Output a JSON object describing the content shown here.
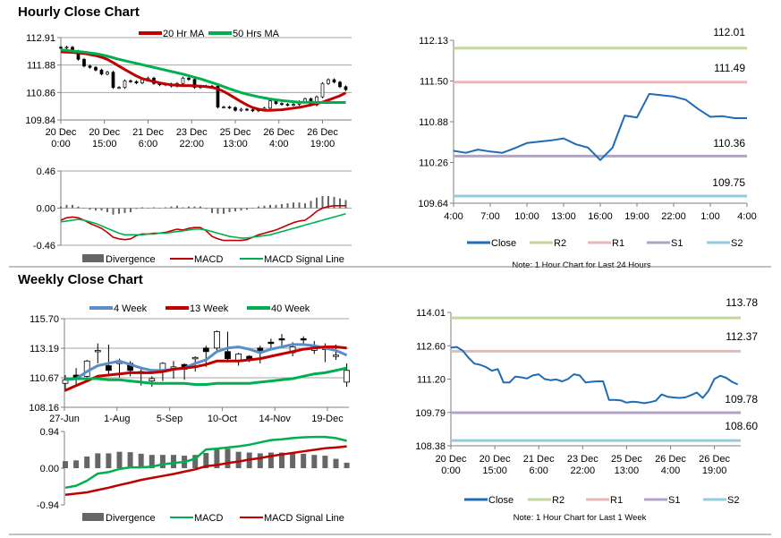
{
  "page": {
    "hourly_title": "Hourly Close Chart",
    "weekly_title": "Weekly Close Chart"
  },
  "colors": {
    "close": "#1f6cb4",
    "ma20": "#c00000",
    "ma50": "#00b050",
    "r2": "#c3d69b",
    "r1": "#e6b9b8",
    "s1": "#b3a2c7",
    "s2": "#93cddd",
    "week4": "#5b8ec9",
    "week13": "#c00000",
    "week40": "#00b050",
    "divergence": "#666666",
    "grid": "#a6a6a6",
    "axis": "#7f7f7f"
  },
  "chart_data": [
    {
      "id": "hourly_candles",
      "type": "candlestick",
      "x_start": "20 Dec 0:00",
      "interval_hours": 2,
      "xticks": [
        [
          "20 Dec",
          "0:00"
        ],
        [
          "20 Dec",
          "15:00"
        ],
        [
          "21 Dec",
          "6:00"
        ],
        [
          "23 Dec",
          "22:00"
        ],
        [
          "25 Dec",
          "13:00"
        ],
        [
          "26 Dec",
          "4:00"
        ],
        [
          "26 Dec",
          "19:00"
        ]
      ],
      "yticks": [
        "112.91",
        "111.88",
        "110.86",
        "109.84"
      ],
      "ylim": [
        109.84,
        112.91
      ],
      "grid": true,
      "legend_position": "top",
      "close": {
        "values": [
          112.52,
          112.55,
          112.4,
          112.1,
          111.85,
          111.8,
          111.7,
          111.55,
          111.62,
          111.05,
          111.05,
          111.3,
          111.27,
          111.22,
          111.35,
          111.4,
          111.2,
          111.15,
          111.18,
          111.1,
          111.2,
          111.4,
          111.35,
          111.05,
          111.08,
          111.1,
          111.1,
          110.32,
          110.32,
          110.3,
          110.2,
          110.24,
          110.22,
          110.18,
          110.22,
          110.28,
          110.55,
          110.45,
          110.42,
          110.4,
          110.42,
          110.52,
          110.63,
          110.4,
          110.7,
          111.2,
          111.34,
          111.25,
          111.08,
          110.97
        ]
      },
      "series": [
        {
          "name": "20 Hr MA",
          "color": "#c00000",
          "values": [
            112.38,
            112.37,
            112.36,
            112.34,
            112.32,
            112.28,
            112.24,
            112.18,
            112.1,
            111.98,
            111.85,
            111.72,
            111.6,
            111.48,
            111.38,
            111.32,
            111.27,
            111.22,
            111.18,
            111.15,
            111.13,
            111.12,
            111.12,
            111.11,
            111.1,
            111.08,
            111.05,
            111.0,
            110.9,
            110.78,
            110.65,
            110.52,
            110.4,
            110.3,
            110.24,
            110.2,
            110.2,
            110.21,
            110.22,
            110.25,
            110.28,
            110.31,
            110.35,
            110.4,
            110.45,
            110.5,
            110.58,
            110.66,
            110.74,
            110.85
          ]
        },
        {
          "name": "50 Hrs MA",
          "color": "#00b050",
          "values": [
            112.45,
            112.43,
            112.41,
            112.39,
            112.37,
            112.34,
            112.31,
            112.27,
            112.22,
            112.16,
            112.1,
            112.05,
            112.0,
            111.95,
            111.9,
            111.85,
            111.8,
            111.75,
            111.7,
            111.65,
            111.6,
            111.55,
            111.49,
            111.43,
            111.37,
            111.3,
            111.23,
            111.16,
            111.08,
            111.0,
            110.93,
            110.86,
            110.8,
            110.75,
            110.7,
            110.66,
            110.62,
            110.59,
            110.56,
            110.54,
            110.52,
            110.5,
            110.5,
            110.5,
            110.49,
            110.49,
            110.49,
            110.49,
            110.49,
            110.49
          ]
        }
      ]
    },
    {
      "id": "hourly_macd",
      "type": "bar+line",
      "x_start": "20 Dec 0:00",
      "interval_hours": 2,
      "yticks": [
        "0.46",
        "0.00",
        "-0.46"
      ],
      "ylim": [
        -0.46,
        0.46
      ],
      "grid": true,
      "legend_position": "bottom",
      "series": [
        {
          "name": "Divergence",
          "color": "#666666"
        },
        {
          "name": "MACD",
          "color": "#c00000",
          "values": [
            -0.15,
            -0.12,
            -0.11,
            -0.12,
            -0.15,
            -0.19,
            -0.22,
            -0.25,
            -0.3,
            -0.36,
            -0.38,
            -0.39,
            -0.38,
            -0.34,
            -0.32,
            -0.32,
            -0.31,
            -0.31,
            -0.3,
            -0.28,
            -0.26,
            -0.27,
            -0.25,
            -0.24,
            -0.24,
            -0.28,
            -0.35,
            -0.38,
            -0.4,
            -0.4,
            -0.4,
            -0.4,
            -0.39,
            -0.36,
            -0.33,
            -0.31,
            -0.29,
            -0.27,
            -0.24,
            -0.21,
            -0.18,
            -0.16,
            -0.15,
            -0.1,
            -0.04,
            0.0,
            0.02,
            0.03,
            0.03,
            0.03
          ]
        },
        {
          "name": "MACD Signal Line",
          "color": "#00b050",
          "values": [
            -0.17,
            -0.16,
            -0.15,
            -0.14,
            -0.15,
            -0.17,
            -0.19,
            -0.22,
            -0.25,
            -0.28,
            -0.31,
            -0.33,
            -0.33,
            -0.33,
            -0.33,
            -0.32,
            -0.32,
            -0.31,
            -0.31,
            -0.3,
            -0.29,
            -0.28,
            -0.27,
            -0.26,
            -0.26,
            -0.27,
            -0.29,
            -0.31,
            -0.33,
            -0.35,
            -0.36,
            -0.37,
            -0.37,
            -0.36,
            -0.35,
            -0.34,
            -0.33,
            -0.31,
            -0.29,
            -0.27,
            -0.25,
            -0.23,
            -0.21,
            -0.19,
            -0.17,
            -0.15,
            -0.13,
            -0.11,
            -0.09,
            -0.07
          ]
        }
      ]
    },
    {
      "id": "hourly_24h",
      "type": "line",
      "x_start": "4:00",
      "interval_hours": 1,
      "xticks": [
        "4:00",
        "7:00",
        "10:00",
        "13:00",
        "16:00",
        "19:00",
        "22:00",
        "1:00",
        "4:00"
      ],
      "yticks": [
        "112.13",
        "111.50",
        "110.88",
        "110.26",
        "109.64"
      ],
      "ylim": [
        109.64,
        112.13
      ],
      "grid": false,
      "legend_position": "bottom",
      "series": [
        {
          "name": "Close",
          "color": "#1f6cb4",
          "values": [
            110.44,
            110.41,
            110.46,
            110.43,
            110.41,
            110.48,
            110.56,
            110.58,
            110.6,
            110.63,
            110.54,
            110.49,
            110.3,
            110.49,
            110.98,
            110.95,
            111.31,
            111.29,
            111.27,
            111.22,
            111.08,
            110.96,
            110.97,
            110.94,
            110.94
          ]
        }
      ],
      "levels": [
        {
          "name": "R2",
          "value": 112.01,
          "label": "112.01",
          "color": "#c3d69b"
        },
        {
          "name": "R1",
          "value": 111.49,
          "label": "111.49",
          "color": "#e6b9b8"
        },
        {
          "name": "S1",
          "value": 110.36,
          "label": "110.36",
          "color": "#b3a2c7"
        },
        {
          "name": "S2",
          "value": 109.75,
          "label": "109.75",
          "color": "#93cddd"
        }
      ],
      "note": "Note: 1 Hour Chart for Last 24 Hours"
    },
    {
      "id": "weekly_candles",
      "type": "candlestick",
      "x_start": "27-Jun",
      "interval": "1 week",
      "xticks": [
        "27-Jun",
        "1-Aug",
        "5-Sep",
        "10-Oct",
        "14-Nov",
        "19-Dec"
      ],
      "yticks": [
        "115.70",
        "113.19",
        "110.67",
        "108.16"
      ],
      "ylim": [
        108.16,
        115.7
      ],
      "grid": true,
      "legend_position": "top",
      "ohlc": [
        [
          110.2,
          110.9,
          109.5,
          110.5
        ],
        [
          110.9,
          111.5,
          110.1,
          110.7
        ],
        [
          110.8,
          112.2,
          110.6,
          112.1
        ],
        [
          113.0,
          113.6,
          111.9,
          113.0
        ],
        [
          111.7,
          113.5,
          110.9,
          111.3
        ],
        [
          112.0,
          112.3,
          110.7,
          112.0
        ],
        [
          111.9,
          112.1,
          110.8,
          111.3
        ],
        [
          111.2,
          111.6,
          110.0,
          111.1
        ],
        [
          110.4,
          110.8,
          109.9,
          110.6
        ],
        [
          111.3,
          112.0,
          110.4,
          111.9
        ],
        [
          111.6,
          112.1,
          110.6,
          111.6
        ],
        [
          111.8,
          111.9,
          110.5,
          111.4
        ],
        [
          112.4,
          112.5,
          111.2,
          112.4
        ],
        [
          113.2,
          113.4,
          111.6,
          112.9
        ],
        [
          113.2,
          114.7,
          113.0,
          114.6
        ],
        [
          112.9,
          114.6,
          112.0,
          112.3
        ],
        [
          112.1,
          112.8,
          111.7,
          112.7
        ],
        [
          112.5,
          112.6,
          112.0,
          112.3
        ],
        [
          113.2,
          113.4,
          111.9,
          113.0
        ],
        [
          113.7,
          114.0,
          113.0,
          113.6
        ],
        [
          114.0,
          114.4,
          113.2,
          113.9
        ],
        [
          112.8,
          113.7,
          112.5,
          113.3
        ],
        [
          114.0,
          114.2,
          113.4,
          113.9
        ],
        [
          113.0,
          113.8,
          112.7,
          113.4
        ],
        [
          113.2,
          113.6,
          112.0,
          113.2
        ],
        [
          112.6,
          113.5,
          112.2,
          112.6
        ],
        [
          110.3,
          111.9,
          109.9,
          111.3
        ]
      ],
      "series": [
        {
          "name": "4 Week",
          "color": "#5b8ec9",
          "values": [
            110.5,
            110.6,
            111.2,
            111.7,
            111.9,
            112.1,
            111.8,
            111.5,
            111.3,
            111.3,
            111.4,
            111.5,
            111.9,
            112.2,
            112.9,
            113.2,
            113.3,
            113.1,
            112.8,
            113.1,
            113.3,
            113.5,
            113.5,
            113.4,
            113.2,
            113.0,
            112.6
          ]
        },
        {
          "name": "13 Week",
          "color": "#c00000",
          "values": [
            109.6,
            110.0,
            110.4,
            110.8,
            110.9,
            111.0,
            111.1,
            111.1,
            111.1,
            111.2,
            111.4,
            111.5,
            111.6,
            111.8,
            112.1,
            112.1,
            112.1,
            112.2,
            112.3,
            112.5,
            112.7,
            112.9,
            113.1,
            113.2,
            113.3,
            113.3,
            113.2
          ]
        },
        {
          "name": "40 Week",
          "color": "#00b050",
          "values": [
            110.6,
            110.6,
            110.6,
            110.6,
            110.5,
            110.5,
            110.4,
            110.3,
            110.2,
            110.2,
            110.2,
            110.2,
            110.1,
            110.1,
            110.2,
            110.2,
            110.2,
            110.2,
            110.3,
            110.4,
            110.5,
            110.6,
            110.8,
            111.0,
            111.1,
            111.3,
            111.5
          ]
        }
      ]
    },
    {
      "id": "weekly_macd",
      "type": "bar+line",
      "x_start": "27-Jun",
      "interval": "1 week",
      "yticks": [
        "0.94",
        "0.00",
        "-0.94"
      ],
      "ylim": [
        -0.94,
        0.94
      ],
      "grid": false,
      "legend_position": "bottom",
      "series": [
        {
          "name": "Divergence",
          "color": "#666666",
          "values": [
            0.18,
            0.2,
            0.3,
            0.38,
            0.38,
            0.42,
            0.41,
            0.37,
            0.34,
            0.34,
            0.34,
            0.32,
            0.34,
            0.39,
            0.48,
            0.5,
            0.42,
            0.4,
            0.38,
            0.4,
            0.4,
            0.38,
            0.37,
            0.34,
            0.32,
            0.24,
            0.14
          ]
        },
        {
          "name": "MACD",
          "color": "#00b050",
          "values": [
            -0.5,
            -0.45,
            -0.32,
            -0.14,
            -0.1,
            -0.02,
            0.02,
            0.02,
            0.04,
            0.1,
            0.13,
            0.16,
            0.24,
            0.48,
            0.5,
            0.53,
            0.56,
            0.6,
            0.66,
            0.72,
            0.74,
            0.77,
            0.79,
            0.8,
            0.8,
            0.77,
            0.7
          ]
        },
        {
          "name": "MACD Signal Line",
          "color": "#c00000",
          "values": [
            -0.68,
            -0.65,
            -0.62,
            -0.56,
            -0.5,
            -0.43,
            -0.37,
            -0.3,
            -0.25,
            -0.2,
            -0.15,
            -0.09,
            -0.03,
            0.05,
            0.08,
            0.13,
            0.17,
            0.22,
            0.26,
            0.31,
            0.35,
            0.39,
            0.43,
            0.47,
            0.51,
            0.53,
            0.56
          ]
        }
      ]
    },
    {
      "id": "hourly_1week",
      "type": "line",
      "x_start": "20 Dec 0:00",
      "interval_hours": 2,
      "xticks": [
        [
          "20 Dec",
          "0:00"
        ],
        [
          "20 Dec",
          "15:00"
        ],
        [
          "21 Dec",
          "6:00"
        ],
        [
          "23 Dec",
          "22:00"
        ],
        [
          "25 Dec",
          "13:00"
        ],
        [
          "26 Dec",
          "4:00"
        ],
        [
          "26 Dec",
          "19:00"
        ]
      ],
      "yticks": [
        "114.01",
        "112.60",
        "111.20",
        "109.79",
        "108.38"
      ],
      "ylim": [
        108.38,
        114.01
      ],
      "grid": false,
      "legend_position": "bottom",
      "series": [
        {
          "name": "Close",
          "color": "#1f6cb4",
          "values": [
            112.52,
            112.55,
            112.4,
            112.1,
            111.85,
            111.8,
            111.7,
            111.55,
            111.62,
            111.05,
            111.05,
            111.3,
            111.27,
            111.22,
            111.35,
            111.4,
            111.2,
            111.15,
            111.18,
            111.1,
            111.2,
            111.4,
            111.35,
            111.05,
            111.08,
            111.1,
            111.1,
            110.32,
            110.32,
            110.3,
            110.2,
            110.24,
            110.22,
            110.18,
            110.22,
            110.28,
            110.55,
            110.45,
            110.42,
            110.4,
            110.42,
            110.52,
            110.63,
            110.4,
            110.7,
            111.2,
            111.34,
            111.25,
            111.08,
            110.97
          ]
        }
      ],
      "levels": [
        {
          "name": "R2",
          "value": 113.78,
          "label": "113.78",
          "color": "#c3d69b"
        },
        {
          "name": "R1",
          "value": 112.37,
          "label": "112.37",
          "color": "#e6b9b8"
        },
        {
          "name": "S1",
          "value": 109.78,
          "label": "109.78",
          "color": "#b3a2c7"
        },
        {
          "name": "S2",
          "value": 108.6,
          "label": "108.60",
          "color": "#93cddd"
        }
      ],
      "note": "Note: 1 Hour Chart for Last 1 Week"
    }
  ]
}
